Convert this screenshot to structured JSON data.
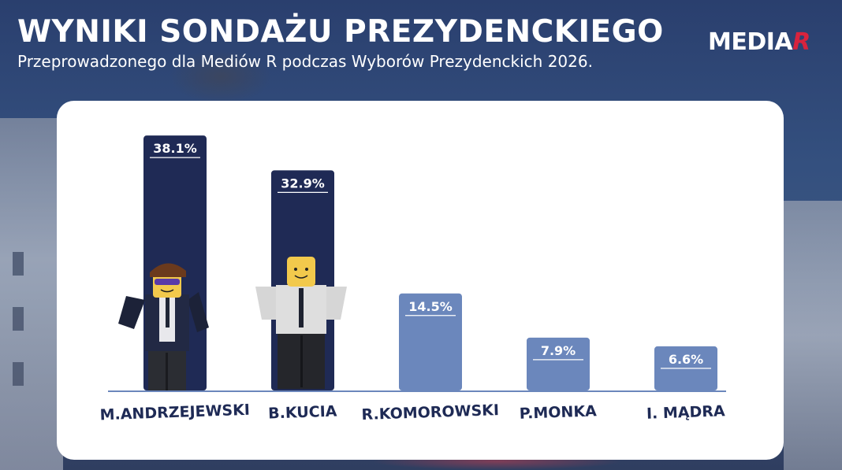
{
  "header": {
    "title": "WYNIKI SONDAŻU PREZYDENCKIEGO",
    "subtitle": "Przeprowadzonego dla Mediów R podczas Wyborów Prezydenckich 2026.",
    "logo_text": "MEDIA",
    "logo_accent": "R"
  },
  "colors": {
    "dark_bar": "#1f2a55",
    "light_bar": "#6b87bc",
    "baseline": "#6b87bc",
    "label_text": "#1e2a55",
    "logo_accent": "#d8233d"
  },
  "chart_data": {
    "type": "bar",
    "title": "WYNIKI SONDAŻU PREZYDENCKIEGO",
    "categories": [
      "M.ANDRZEJEWSKI",
      "B.KUCIA",
      "R.KOMOROWSKI",
      "P.MONKA",
      "I. MĄDRA"
    ],
    "values": [
      38.1,
      32.9,
      14.5,
      7.9,
      6.6
    ],
    "value_labels": [
      "38.1%",
      "32.9%",
      "14.5%",
      "7.9%",
      "6.6%"
    ],
    "bar_styles": [
      "dark",
      "dark",
      "light",
      "light",
      "light"
    ],
    "ylim": [
      0,
      40
    ],
    "grid": false,
    "legend": "none"
  }
}
